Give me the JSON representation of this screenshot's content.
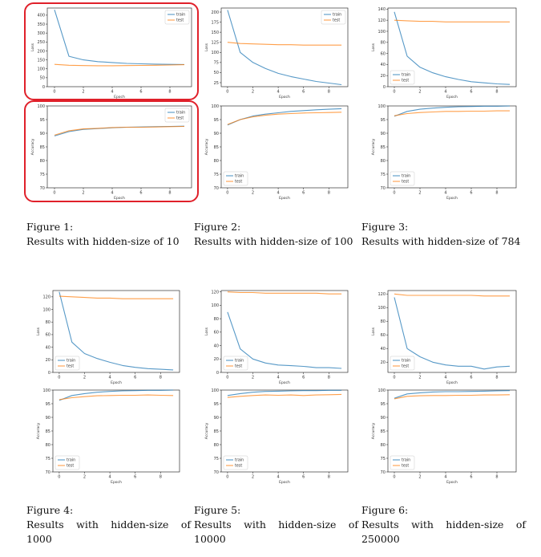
{
  "figures": [
    {
      "heading": "Figure 1:",
      "text": "Results with hidden-size of 10"
    },
    {
      "heading": "Figure 2:",
      "text": "Results with hidden-size of 100"
    },
    {
      "heading": "Figure 3:",
      "text": "Results with hidden-size of 784"
    },
    {
      "heading": "Figure 4:",
      "text": "Results with hidden-size of 1000"
    },
    {
      "heading": "Figure 5:",
      "text": "Results with hidden-size of 10000"
    },
    {
      "heading": "Figure 6:",
      "text": "Results with hidden-size of 250000"
    }
  ],
  "highlight_color": "#e0202a",
  "series_colors": {
    "train": "#1f77b4",
    "test": "#ff7f0e"
  },
  "chart_data": [
    {
      "type": "line",
      "figure": 1,
      "xlabel": "Epoch",
      "ylabel": "Loss",
      "legend": "top-right",
      "xlim": [
        -0.5,
        9.5
      ],
      "xticks": [
        0,
        2,
        4,
        6,
        8
      ],
      "ylim": [
        0,
        440
      ],
      "yticks": [
        0,
        50,
        100,
        150,
        200,
        250,
        300,
        350,
        400
      ],
      "x": [
        0,
        1,
        2,
        3,
        4,
        5,
        6,
        7,
        8,
        9
      ],
      "series": [
        {
          "name": "train",
          "values": [
            430,
            170,
            150,
            140,
            135,
            130,
            128,
            126,
            125,
            124
          ]
        },
        {
          "name": "test",
          "values": [
            125,
            120,
            118,
            117,
            117,
            118,
            119,
            120,
            121,
            123
          ]
        }
      ]
    },
    {
      "type": "line",
      "figure": 1,
      "xlabel": "Epoch",
      "ylabel": "Accuracy",
      "legend": "top-right",
      "xlim": [
        -0.5,
        9.5
      ],
      "xticks": [
        0,
        2,
        4,
        6,
        8
      ],
      "ylim": [
        70,
        100
      ],
      "yticks": [
        70,
        75,
        80,
        85,
        90,
        95,
        100
      ],
      "x": [
        0,
        1,
        2,
        3,
        4,
        5,
        6,
        7,
        8,
        9
      ],
      "series": [
        {
          "name": "train",
          "values": [
            89,
            90.6,
            91.4,
            91.7,
            92.0,
            92.2,
            92.3,
            92.4,
            92.5,
            92.6
          ]
        },
        {
          "name": "test",
          "values": [
            89.3,
            90.9,
            91.6,
            91.8,
            92.1,
            92.2,
            92.2,
            92.3,
            92.4,
            92.5
          ]
        }
      ]
    },
    {
      "type": "line",
      "figure": 2,
      "xlabel": "Epoch",
      "ylabel": "Loss",
      "legend": "top-right",
      "xlim": [
        -0.5,
        9.5
      ],
      "xticks": [
        0,
        2,
        4,
        6,
        8
      ],
      "ylim": [
        15,
        210
      ],
      "yticks": [
        25,
        50,
        75,
        100,
        125,
        150,
        175,
        200
      ],
      "x": [
        0,
        1,
        2,
        3,
        4,
        5,
        6,
        7,
        8,
        9
      ],
      "series": [
        {
          "name": "train",
          "values": [
            205,
            100,
            75,
            60,
            48,
            40,
            34,
            28,
            24,
            20
          ]
        },
        {
          "name": "test",
          "values": [
            125,
            122,
            121,
            120,
            119,
            119,
            118,
            118,
            118,
            118
          ]
        }
      ]
    },
    {
      "type": "line",
      "figure": 2,
      "xlabel": "Epoch",
      "ylabel": "Accuracy",
      "legend": "bottom-left",
      "xlim": [
        -0.5,
        9.5
      ],
      "xticks": [
        0,
        2,
        4,
        6,
        8
      ],
      "ylim": [
        70,
        100
      ],
      "yticks": [
        70,
        75,
        80,
        85,
        90,
        95,
        100
      ],
      "x": [
        0,
        1,
        2,
        3,
        4,
        5,
        6,
        7,
        8,
        9
      ],
      "series": [
        {
          "name": "train",
          "values": [
            93,
            95,
            96.3,
            97,
            97.5,
            98,
            98.3,
            98.6,
            98.8,
            99
          ]
        },
        {
          "name": "test",
          "values": [
            93.2,
            95,
            96,
            96.6,
            97,
            97.2,
            97.4,
            97.5,
            97.6,
            97.7
          ]
        }
      ]
    },
    {
      "type": "line",
      "figure": 3,
      "xlabel": "Epoch",
      "ylabel": "Loss",
      "legend": "bottom-left",
      "xlim": [
        -0.5,
        9.5
      ],
      "xticks": [
        0,
        2,
        4,
        6,
        8
      ],
      "ylim": [
        0,
        142
      ],
      "yticks": [
        0,
        20,
        40,
        60,
        80,
        100,
        120,
        140
      ],
      "x": [
        0,
        1,
        2,
        3,
        4,
        5,
        6,
        7,
        8,
        9
      ],
      "series": [
        {
          "name": "train",
          "values": [
            135,
            55,
            35,
            25,
            18,
            13,
            9,
            7,
            5,
            4
          ]
        },
        {
          "name": "test",
          "values": [
            120,
            119,
            118,
            118,
            117,
            117,
            117,
            117,
            117,
            117
          ]
        }
      ]
    },
    {
      "type": "line",
      "figure": 3,
      "xlabel": "Epoch",
      "ylabel": "Accuracy",
      "legend": "bottom-left",
      "xlim": [
        -0.5,
        9.5
      ],
      "xticks": [
        0,
        2,
        4,
        6,
        8
      ],
      "ylim": [
        70,
        100
      ],
      "yticks": [
        70,
        75,
        80,
        85,
        90,
        95,
        100
      ],
      "x": [
        0,
        1,
        2,
        3,
        4,
        5,
        6,
        7,
        8,
        9
      ],
      "series": [
        {
          "name": "train",
          "values": [
            96.2,
            98,
            98.8,
            99.2,
            99.5,
            99.7,
            99.8,
            99.9,
            99.9,
            100
          ]
        },
        {
          "name": "test",
          "values": [
            96.4,
            97.2,
            97.6,
            97.8,
            98,
            98,
            98.1,
            98.1,
            98.2,
            98.2
          ]
        }
      ]
    },
    {
      "type": "line",
      "figure": 4,
      "xlabel": "Epoch",
      "ylabel": "Loss",
      "legend": "bottom-left",
      "xlim": [
        -0.5,
        9.5
      ],
      "xticks": [
        0,
        2,
        4,
        6,
        8
      ],
      "ylim": [
        0,
        130
      ],
      "yticks": [
        0,
        20,
        40,
        60,
        80,
        100,
        120
      ],
      "x": [
        0,
        1,
        2,
        3,
        4,
        5,
        6,
        7,
        8,
        9
      ],
      "series": [
        {
          "name": "train",
          "values": [
            128,
            48,
            30,
            22,
            16,
            11,
            8,
            6,
            5,
            4
          ]
        },
        {
          "name": "test",
          "values": [
            121,
            120,
            119,
            118,
            118,
            117,
            117,
            117,
            117,
            117
          ]
        }
      ]
    },
    {
      "type": "line",
      "figure": 4,
      "xlabel": "Epoch",
      "ylabel": "Accuracy",
      "legend": "bottom-left",
      "xlim": [
        -0.5,
        9.5
      ],
      "xticks": [
        0,
        2,
        4,
        6,
        8
      ],
      "ylim": [
        70,
        100
      ],
      "yticks": [
        70,
        75,
        80,
        85,
        90,
        95,
        100
      ],
      "x": [
        0,
        1,
        2,
        3,
        4,
        5,
        6,
        7,
        8,
        9
      ],
      "series": [
        {
          "name": "train",
          "values": [
            96.2,
            98,
            98.7,
            99.2,
            99.5,
            99.7,
            99.8,
            99.9,
            99.9,
            100
          ]
        },
        {
          "name": "test",
          "values": [
            96.5,
            97.2,
            97.6,
            97.9,
            98,
            98.1,
            98.1,
            98.2,
            98.1,
            98
          ]
        }
      ]
    },
    {
      "type": "line",
      "figure": 5,
      "xlabel": "Epoch",
      "ylabel": "Loss",
      "legend": "bottom-left",
      "xlim": [
        -0.5,
        9.5
      ],
      "xticks": [
        0,
        2,
        4,
        6,
        8
      ],
      "ylim": [
        0,
        122
      ],
      "yticks": [
        0,
        20,
        40,
        60,
        80,
        100,
        120
      ],
      "x": [
        0,
        1,
        2,
        3,
        4,
        5,
        6,
        7,
        8,
        9
      ],
      "series": [
        {
          "name": "train",
          "values": [
            90,
            35,
            20,
            14,
            11,
            10,
            9,
            7,
            7,
            6
          ]
        },
        {
          "name": "test",
          "values": [
            120,
            119,
            119,
            118,
            118,
            118,
            118,
            118,
            117,
            117
          ]
        }
      ]
    },
    {
      "type": "line",
      "figure": 5,
      "xlabel": "Epoch",
      "ylabel": "Accuracy",
      "legend": "bottom-left",
      "xlim": [
        -0.5,
        9.5
      ],
      "xticks": [
        0,
        2,
        4,
        6,
        8
      ],
      "ylim": [
        70,
        100
      ],
      "yticks": [
        70,
        75,
        80,
        85,
        90,
        95,
        100
      ],
      "x": [
        0,
        1,
        2,
        3,
        4,
        5,
        6,
        7,
        8,
        9
      ],
      "series": [
        {
          "name": "train",
          "values": [
            98,
            98.7,
            99.2,
            99.5,
            99.6,
            99.7,
            99.8,
            99.8,
            99.9,
            99.9
          ]
        },
        {
          "name": "test",
          "values": [
            97.3,
            97.7,
            98,
            98.2,
            98.1,
            98.2,
            98,
            98.2,
            98.3,
            98.4
          ]
        }
      ]
    },
    {
      "type": "line",
      "figure": 6,
      "xlabel": "Epoch",
      "ylabel": "Loss",
      "legend": "bottom-left",
      "xlim": [
        -0.5,
        9.5
      ],
      "xticks": [
        0,
        2,
        4,
        6,
        8
      ],
      "ylim": [
        5,
        125
      ],
      "yticks": [
        20,
        40,
        60,
        80,
        100,
        120
      ],
      "x": [
        0,
        1,
        2,
        3,
        4,
        5,
        6,
        7,
        8,
        9
      ],
      "series": [
        {
          "name": "train",
          "values": [
            115,
            40,
            28,
            20,
            16,
            14,
            14,
            10,
            13,
            14
          ]
        },
        {
          "name": "test",
          "values": [
            120,
            118,
            118,
            118,
            118,
            118,
            118,
            117,
            117,
            117
          ]
        }
      ]
    },
    {
      "type": "line",
      "figure": 6,
      "xlabel": "Epoch",
      "ylabel": "Accuracy",
      "legend": "bottom-left",
      "xlim": [
        -0.5,
        9.5
      ],
      "xticks": [
        0,
        2,
        4,
        6,
        8
      ],
      "ylim": [
        70,
        100
      ],
      "yticks": [
        70,
        75,
        80,
        85,
        90,
        95,
        100
      ],
      "x": [
        0,
        1,
        2,
        3,
        4,
        5,
        6,
        7,
        8,
        9
      ],
      "series": [
        {
          "name": "train",
          "values": [
            97,
            98.6,
            99,
            99.3,
            99.4,
            99.4,
            99.5,
            99.6,
            99.7,
            99.8
          ]
        },
        {
          "name": "test",
          "values": [
            96.8,
            97.7,
            97.9,
            98,
            98,
            98.1,
            98.1,
            98.2,
            98.2,
            98.3
          ]
        }
      ]
    }
  ]
}
